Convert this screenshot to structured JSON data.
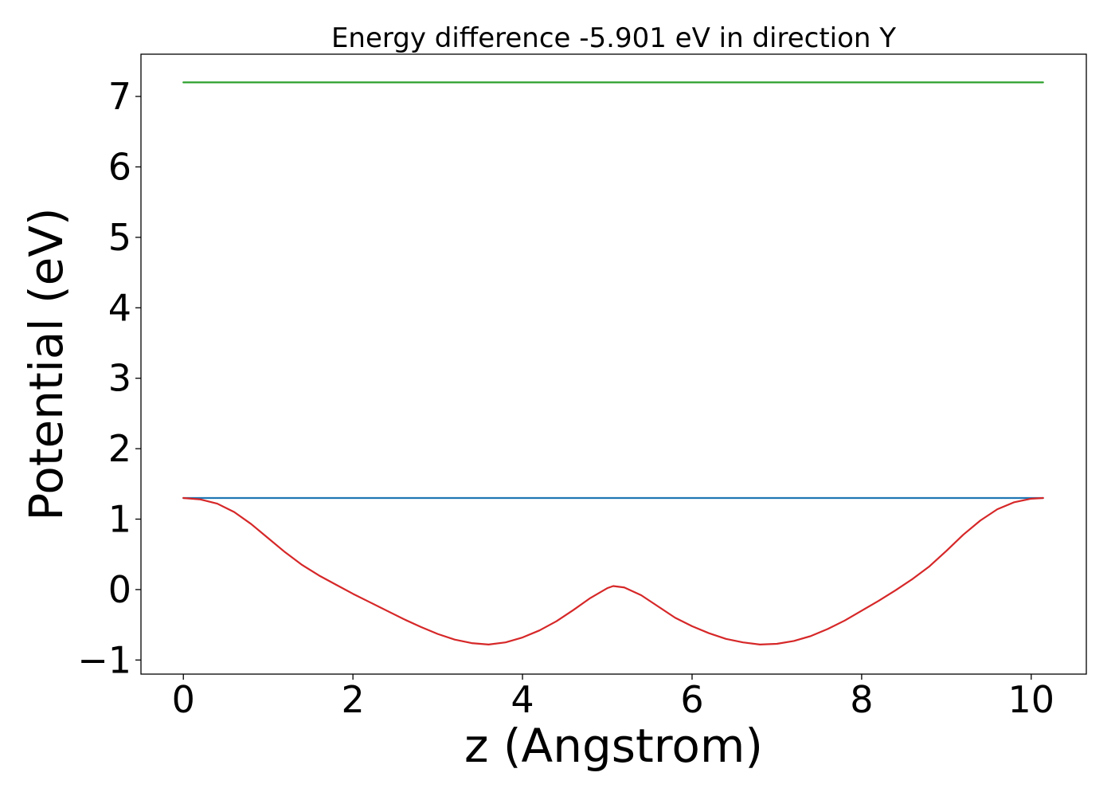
{
  "chart_data": {
    "type": "line",
    "title": "Energy difference -5.901 eV in direction Y",
    "xlabel": "z (Angstrom)",
    "ylabel": "Potential (eV)",
    "xlim": [
      -0.5,
      10.65
    ],
    "ylim": [
      -1.2,
      7.6
    ],
    "xticks": [
      0,
      2,
      4,
      6,
      8,
      10
    ],
    "xtick_labels": [
      "0",
      "2",
      "4",
      "6",
      "8",
      "10"
    ],
    "yticks": [
      -1,
      0,
      1,
      2,
      3,
      4,
      5,
      6,
      7
    ],
    "ytick_labels": [
      "−1",
      "0",
      "1",
      "2",
      "3",
      "4",
      "5",
      "6",
      "7"
    ],
    "grid": false,
    "series": [
      {
        "color": "#2ca02c",
        "x": [
          0,
          10.14
        ],
        "y": [
          7.2,
          7.2
        ]
      },
      {
        "color": "#1f77b4",
        "x": [
          0,
          10.14
        ],
        "y": [
          1.3,
          1.3
        ]
      },
      {
        "color": "#d62728",
        "x": [
          0,
          0.2,
          0.4,
          0.6,
          0.8,
          1.0,
          1.2,
          1.4,
          1.6,
          1.8,
          2.0,
          2.2,
          2.4,
          2.6,
          2.8,
          3.0,
          3.2,
          3.4,
          3.6,
          3.8,
          4.0,
          4.2,
          4.4,
          4.6,
          4.8,
          5.0,
          5.07,
          5.2,
          5.4,
          5.6,
          5.8,
          6.0,
          6.2,
          6.4,
          6.6,
          6.8,
          7.0,
          7.2,
          7.4,
          7.6,
          7.8,
          8.0,
          8.2,
          8.4,
          8.6,
          8.8,
          9.0,
          9.2,
          9.4,
          9.6,
          9.8,
          10.0,
          10.14
        ],
        "y": [
          1.3,
          1.28,
          1.22,
          1.1,
          0.93,
          0.73,
          0.53,
          0.35,
          0.2,
          0.07,
          -0.06,
          -0.18,
          -0.3,
          -0.42,
          -0.53,
          -0.63,
          -0.71,
          -0.76,
          -0.78,
          -0.75,
          -0.68,
          -0.58,
          -0.45,
          -0.29,
          -0.12,
          0.02,
          0.05,
          0.03,
          -0.08,
          -0.24,
          -0.4,
          -0.52,
          -0.62,
          -0.7,
          -0.75,
          -0.78,
          -0.77,
          -0.73,
          -0.66,
          -0.56,
          -0.44,
          -0.3,
          -0.16,
          -0.01,
          0.15,
          0.33,
          0.55,
          0.78,
          0.98,
          1.14,
          1.24,
          1.29,
          1.3
        ]
      }
    ]
  }
}
